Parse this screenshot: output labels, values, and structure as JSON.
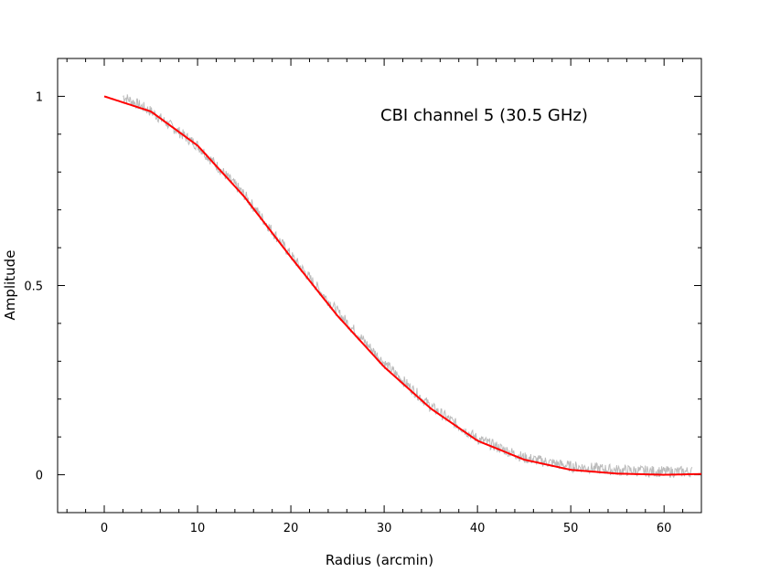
{
  "chart_data": {
    "type": "line",
    "title": "",
    "annotation": "CBI channel 5 (30.5 GHz)",
    "xlabel": "Radius (arcmin)",
    "ylabel": "Amplitude",
    "xlim": [
      -5,
      64
    ],
    "ylim": [
      -0.1,
      1.1
    ],
    "x_ticks": [
      0,
      10,
      20,
      30,
      40,
      50,
      60
    ],
    "x_tick_labels": [
      "0",
      "10",
      "20",
      "30",
      "40",
      "50",
      "60"
    ],
    "y_ticks": [
      0,
      0.5,
      1
    ],
    "y_tick_labels": [
      "0",
      "0.5",
      "1"
    ],
    "grid": false,
    "series": [
      {
        "color": "#aaaaaa",
        "style": "noisy-band",
        "x": [
          2,
          5,
          10,
          15,
          20,
          25,
          30,
          35,
          40,
          45,
          50,
          55,
          60,
          63
        ],
        "y": [
          1.0,
          0.96,
          0.87,
          0.74,
          0.58,
          0.43,
          0.295,
          0.18,
          0.095,
          0.045,
          0.022,
          0.012,
          0.008,
          0.008
        ]
      },
      {
        "color": "#ff0000",
        "style": "line",
        "x": [
          0,
          5,
          10,
          15,
          20,
          25,
          30,
          35,
          40,
          45,
          50,
          55,
          60,
          64
        ],
        "y": [
          1.0,
          0.96,
          0.87,
          0.735,
          0.575,
          0.42,
          0.285,
          0.175,
          0.09,
          0.04,
          0.013,
          0.003,
          0.0,
          0.002
        ]
      }
    ]
  }
}
